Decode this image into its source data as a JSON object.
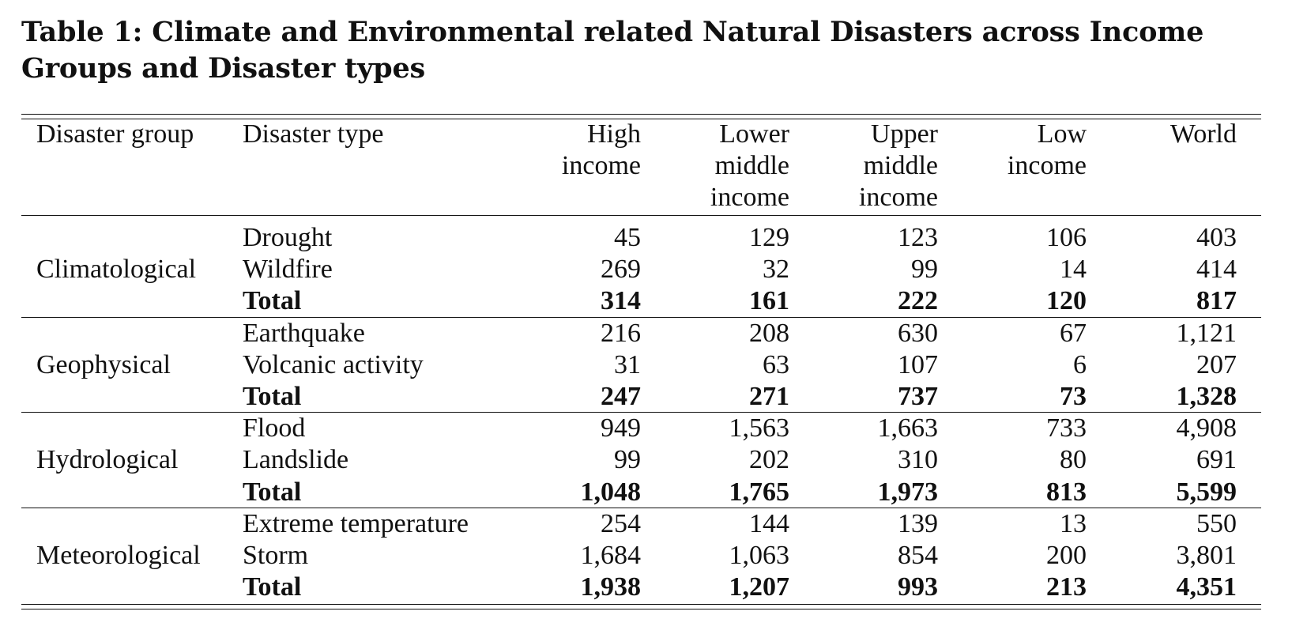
{
  "caption": {
    "label": "Table 1:",
    "text": "Climate and Environmental related Natural Disasters across Income Groups and Disaster types"
  },
  "table": {
    "headers": {
      "group": "Disaster group",
      "type": "Disaster type",
      "high": "High\nincome",
      "lower_middle": "Lower\nmiddle\nincome",
      "upper_middle": "Upper\nmiddle\nincome",
      "low": "Low\nincome",
      "world": "World"
    },
    "groups": [
      {
        "name": "Climatological",
        "rows": [
          {
            "type": "Drought",
            "values": [
              "45",
              "129",
              "123",
              "106",
              "403"
            ],
            "bold": false
          },
          {
            "type": "Wildfire",
            "values": [
              "269",
              "32",
              "99",
              "14",
              "414"
            ],
            "bold": false
          },
          {
            "type": "Total",
            "values": [
              "314",
              "161",
              "222",
              "120",
              "817"
            ],
            "bold": true
          }
        ]
      },
      {
        "name": "Geophysical",
        "rows": [
          {
            "type": "Earthquake",
            "values": [
              "216",
              "208",
              "630",
              "67",
              "1,121"
            ],
            "bold": false
          },
          {
            "type": "Volcanic activity",
            "values": [
              "31",
              "63",
              "107",
              "6",
              "207"
            ],
            "bold": false
          },
          {
            "type": "Total",
            "values": [
              "247",
              "271",
              "737",
              "73",
              "1,328"
            ],
            "bold": true
          }
        ]
      },
      {
        "name": "Hydrological",
        "rows": [
          {
            "type": "Flood",
            "values": [
              "949",
              "1,563",
              "1,663",
              "733",
              "4,908"
            ],
            "bold": false
          },
          {
            "type": "Landslide",
            "values": [
              "99",
              "202",
              "310",
              "80",
              "691"
            ],
            "bold": false
          },
          {
            "type": "Total",
            "values": [
              "1,048",
              "1,765",
              "1,973",
              "813",
              "5,599"
            ],
            "bold": true
          }
        ]
      },
      {
        "name": "Meteorological",
        "rows": [
          {
            "type": "Extreme temperature",
            "values": [
              "254",
              "144",
              "139",
              "13",
              "550"
            ],
            "bold": false
          },
          {
            "type": "Storm",
            "values": [
              "1,684",
              "1,063",
              "854",
              "200",
              "3,801"
            ],
            "bold": false
          },
          {
            "type": "Total",
            "values": [
              "1,938",
              "1,207",
              "993",
              "213",
              "4,351"
            ],
            "bold": true
          }
        ]
      }
    ]
  }
}
